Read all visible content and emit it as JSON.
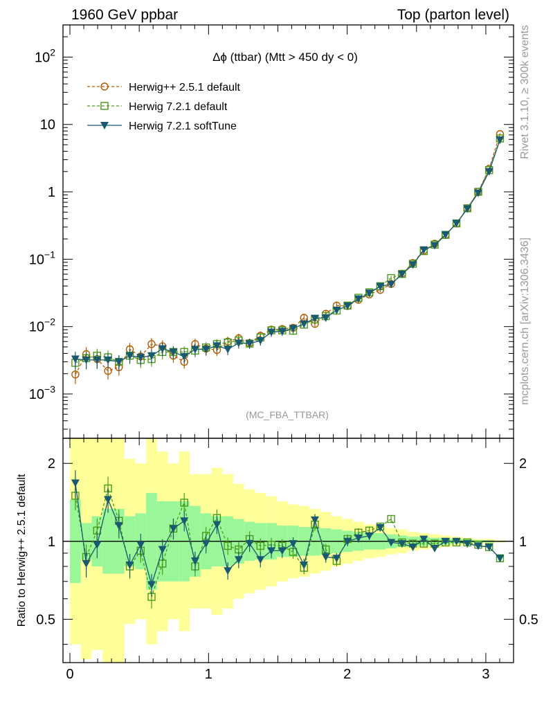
{
  "header": {
    "left": "1960 GeV ppbar",
    "right": "Top (parton level)"
  },
  "side": {
    "top": "Rivet 3.1.10, ≥ 300k events",
    "bottom": "mcplots.cern.ch [arXiv:1306.3436]"
  },
  "chart_data": [
    {
      "type": "line",
      "panel": "main",
      "title": "Δϕ (ttbar) (Mtt > 450 dy < 0)",
      "analysis_tag": "(MC_FBA_TTBAR)",
      "yscale": "log",
      "xlim": [
        -0.05,
        3.2
      ],
      "ylim": [
        0.00022,
        300
      ],
      "y_tick_labels": [
        {
          "value": 100,
          "label": "10",
          "exp": "2"
        },
        {
          "value": 10,
          "label": "10",
          "exp": ""
        },
        {
          "value": 1,
          "label": "1",
          "exp": ""
        },
        {
          "value": 0.1,
          "label": "10",
          "exp": "−1"
        },
        {
          "value": 0.01,
          "label": "10",
          "exp": "−2"
        },
        {
          "value": 0.001,
          "label": "10",
          "exp": "−3"
        }
      ],
      "x": [
        0.0393,
        0.1178,
        0.1963,
        0.2749,
        0.3534,
        0.432,
        0.5105,
        0.589,
        0.6676,
        0.7461,
        0.8247,
        0.9032,
        0.9817,
        1.0603,
        1.1388,
        1.2174,
        1.2959,
        1.3744,
        1.453,
        1.5315,
        1.6101,
        1.6886,
        1.7671,
        1.8457,
        1.9242,
        2.0028,
        2.0813,
        2.1598,
        2.2384,
        2.3169,
        2.3955,
        2.474,
        2.5525,
        2.6311,
        2.7096,
        2.7882,
        2.8667,
        2.9452,
        3.0238,
        3.1023
      ],
      "series": [
        {
          "name": "Herwig++ 2.5.1 default",
          "color": "#b35900",
          "marker": "open-circle",
          "linestyle": "dashed",
          "values": [
            0.00195,
            0.0039,
            0.0033,
            0.0022,
            0.0025,
            0.0046,
            0.0036,
            0.0055,
            0.0051,
            0.0037,
            0.003,
            0.0055,
            0.0047,
            0.0045,
            0.006,
            0.0067,
            0.0057,
            0.0073,
            0.009,
            0.0092,
            0.0096,
            0.0135,
            0.011,
            0.0155,
            0.0205,
            0.0202,
            0.025,
            0.03,
            0.035,
            0.043,
            0.061,
            0.088,
            0.135,
            0.17,
            0.23,
            0.34,
            0.57,
            1.0,
            2.2,
            7.2
          ]
        },
        {
          "name": "Herwig 7.2.1 default",
          "color": "#4a9a1a",
          "marker": "open-square",
          "linestyle": "dashed",
          "values": [
            0.0029,
            0.0034,
            0.0037,
            0.0035,
            0.003,
            0.0037,
            0.0032,
            0.0033,
            0.0042,
            0.0042,
            0.0042,
            0.0044,
            0.0049,
            0.0055,
            0.0058,
            0.0062,
            0.0056,
            0.0069,
            0.0088,
            0.0088,
            0.0087,
            0.0107,
            0.0128,
            0.0143,
            0.0173,
            0.0205,
            0.0268,
            0.0323,
            0.0398,
            0.0525,
            0.0605,
            0.0855,
            0.132,
            0.165,
            0.23,
            0.34,
            0.57,
            1.0,
            2.1,
            6.2
          ]
        },
        {
          "name": "Herwig 7.2.1 softTune",
          "color": "#1a5a70",
          "marker": "filled-triangle-down",
          "linestyle": "solid",
          "values": [
            0.0033,
            0.0032,
            0.0032,
            0.0032,
            0.003,
            0.0037,
            0.0035,
            0.0037,
            0.0047,
            0.0042,
            0.0036,
            0.0046,
            0.0046,
            0.0052,
            0.0046,
            0.0057,
            0.0056,
            0.0062,
            0.0083,
            0.0085,
            0.0094,
            0.011,
            0.0133,
            0.0135,
            0.0175,
            0.0203,
            0.0258,
            0.0315,
            0.0395,
            0.0425,
            0.06,
            0.083,
            0.138,
            0.16,
            0.23,
            0.34,
            0.56,
            0.96,
            2.0,
            5.9
          ]
        }
      ]
    },
    {
      "type": "line",
      "panel": "ratio",
      "ylabel": "Ratio to Herwig++ 2.5.1 default",
      "yscale": "log",
      "xlim": [
        -0.05,
        3.2
      ],
      "ylim": [
        0.34,
        2.5
      ],
      "x_tick_labels": [
        "0",
        "1",
        "2",
        "3"
      ],
      "y_tick_labels": [
        "2",
        "1",
        "0.5"
      ],
      "band_inner": [
        0.69,
        0.85,
        0.8,
        0.75,
        0.75,
        0.8,
        0.78,
        0.65,
        0.7,
        0.7,
        0.7,
        0.73,
        0.78,
        0.8,
        0.8,
        0.82,
        0.84,
        0.85,
        0.85,
        0.87,
        0.87,
        0.88,
        0.88,
        0.89,
        0.9,
        0.91,
        0.92,
        0.93,
        0.93,
        0.94,
        0.95,
        0.96,
        0.96,
        0.97,
        0.97,
        0.98,
        0.98,
        0.99,
        0.99,
        0.995
      ],
      "band_outer": [
        0.4,
        0.35,
        0.38,
        0.34,
        0.34,
        0.48,
        0.5,
        0.4,
        0.45,
        0.5,
        0.45,
        0.55,
        0.55,
        0.52,
        0.55,
        0.6,
        0.63,
        0.65,
        0.67,
        0.7,
        0.72,
        0.73,
        0.75,
        0.77,
        0.8,
        0.82,
        0.84,
        0.86,
        0.87,
        0.89,
        0.9,
        0.92,
        0.93,
        0.94,
        0.95,
        0.96,
        0.97,
        0.98,
        0.98,
        0.99
      ],
      "series": [
        {
          "name": "Herwig 7.2.1 default",
          "color": "#4a9a1a",
          "marker": "open-square",
          "linestyle": "dashed",
          "values": [
            1.5,
            0.87,
            1.1,
            1.6,
            1.2,
            0.8,
            0.92,
            0.61,
            0.82,
            1.12,
            1.41,
            0.8,
            1.05,
            1.23,
            0.96,
            0.93,
            1.02,
            0.96,
            0.97,
            0.96,
            0.91,
            0.79,
            1.16,
            0.93,
            0.84,
            1.02,
            1.08,
            1.1,
            1.14,
            1.22,
            0.99,
            0.98,
            0.98,
            0.98,
            0.99,
            0.99,
            0.99,
            0.97,
            0.95,
            0.86
          ]
        },
        {
          "name": "Herwig 7.2.1 softTune",
          "color": "#1a5a70",
          "marker": "filled-triangle-down",
          "linestyle": "solid",
          "values": [
            1.68,
            0.82,
            0.97,
            1.45,
            1.15,
            0.81,
            0.97,
            0.68,
            0.93,
            1.12,
            1.2,
            0.84,
            0.98,
            1.16,
            0.77,
            0.85,
            0.98,
            0.85,
            0.92,
            0.92,
            0.98,
            0.81,
            1.21,
            0.87,
            0.86,
            1.0,
            1.03,
            1.05,
            1.13,
            0.99,
            0.98,
            0.95,
            1.02,
            0.94,
            1.0,
            1.0,
            0.98,
            0.96,
            0.95,
            0.86
          ]
        }
      ]
    }
  ]
}
